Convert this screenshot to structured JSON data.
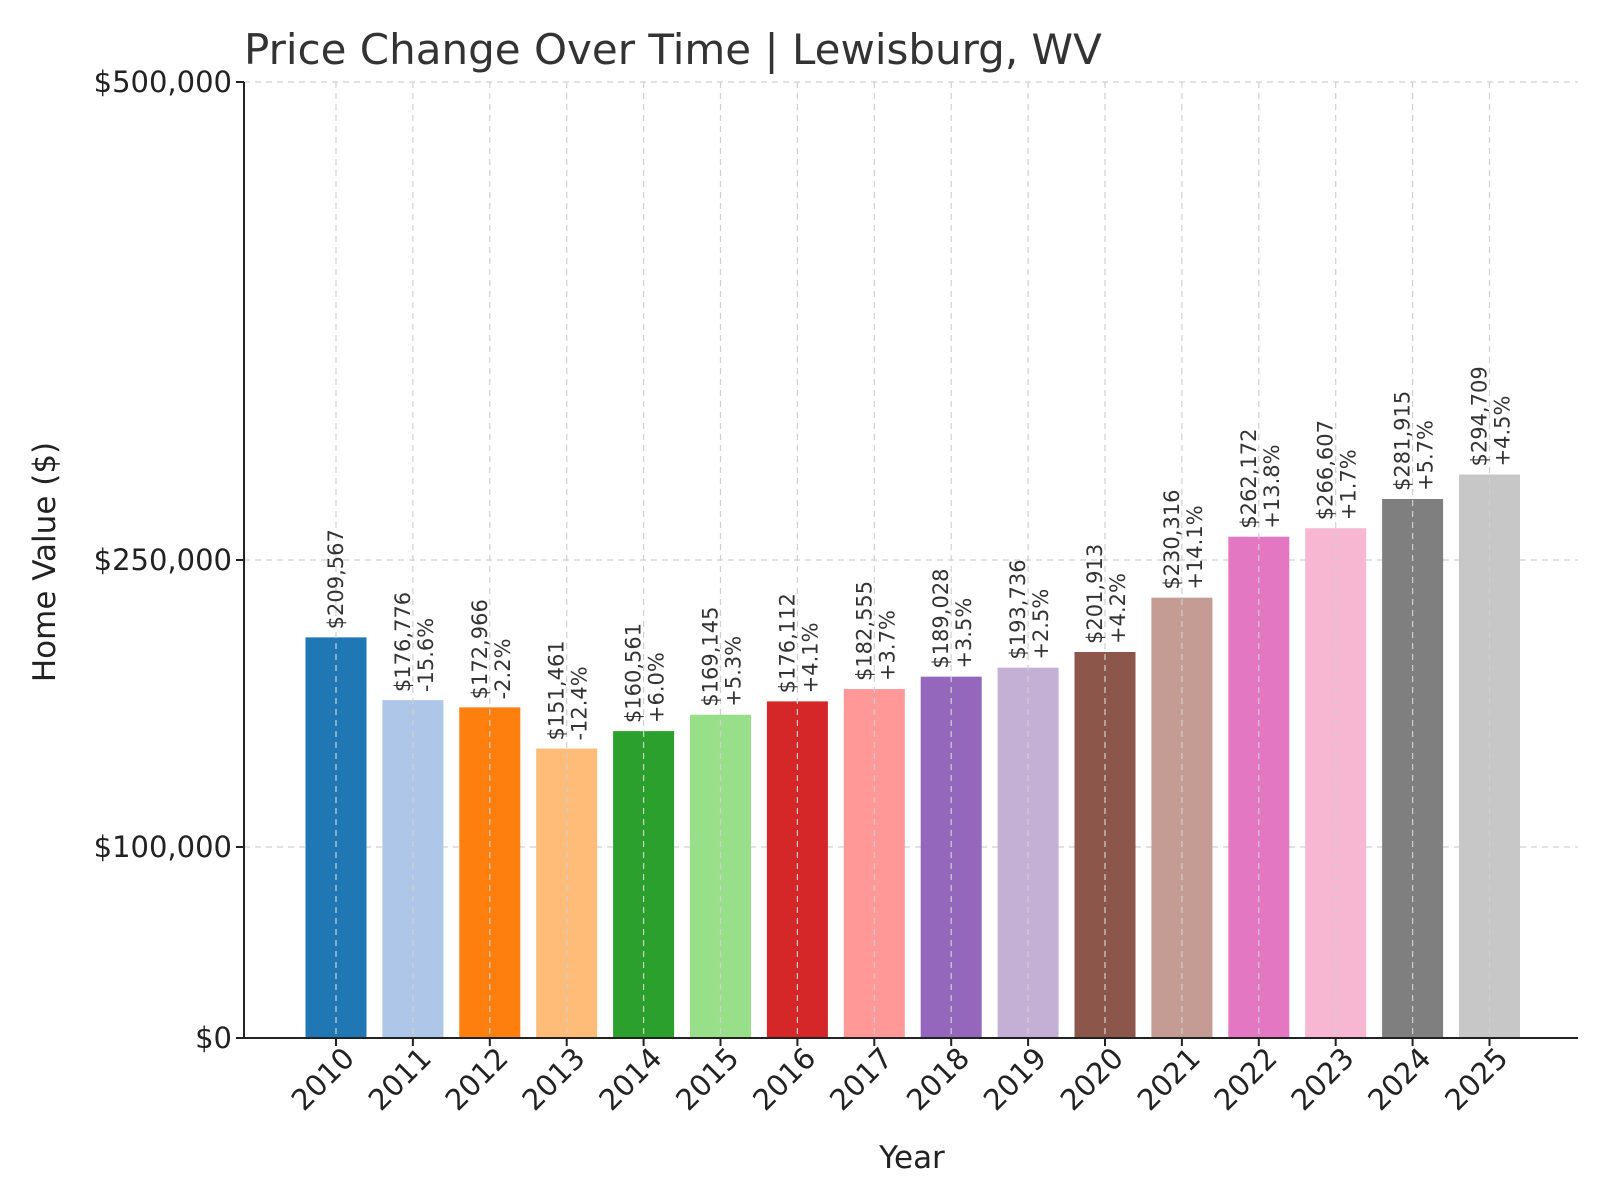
{
  "chart_data": {
    "type": "bar",
    "title": "Price Change Over Time | Lewisburg, WV",
    "xlabel": "Year",
    "ylabel": "Home Value ($)",
    "categories": [
      "2010",
      "2011",
      "2012",
      "2013",
      "2014",
      "2015",
      "2016",
      "2017",
      "2018",
      "2019",
      "2020",
      "2021",
      "2022",
      "2023",
      "2024",
      "2025"
    ],
    "values": [
      209567,
      176776,
      172966,
      151461,
      160561,
      169145,
      176112,
      182555,
      189028,
      193736,
      201913,
      230316,
      262172,
      266607,
      281915,
      294709
    ],
    "value_labels": [
      "$209,567",
      "$176,776",
      "$172,966",
      "$151,461",
      "$160,561",
      "$169,145",
      "$176,112",
      "$182,555",
      "$189,028",
      "$193,736",
      "$201,913",
      "$230,316",
      "$262,172",
      "$266,607",
      "$281,915",
      "$294,709"
    ],
    "change_labels": [
      "",
      "-15.6%",
      "-2.2%",
      "-12.4%",
      "+6.0%",
      "+5.3%",
      "+4.1%",
      "+3.7%",
      "+3.5%",
      "+2.5%",
      "+4.2%",
      "+14.1%",
      "+13.8%",
      "+1.7%",
      "+5.7%",
      "+4.5%"
    ],
    "yticks": [
      0,
      100000,
      250000,
      500000
    ],
    "ytick_labels": [
      "$0",
      "$100,000",
      "$250,000",
      "$500,000"
    ],
    "ylim": [
      0,
      500000
    ],
    "grid": true,
    "colors": [
      "#1f77b4",
      "#aec7e8",
      "#ff7f0e",
      "#ffbb78",
      "#2ca02c",
      "#98df8a",
      "#d62728",
      "#ff9896",
      "#9467bd",
      "#c5b0d5",
      "#8c564b",
      "#c49c94",
      "#e377c2",
      "#f7b6d2",
      "#7f7f7f",
      "#c7c7c7"
    ]
  }
}
